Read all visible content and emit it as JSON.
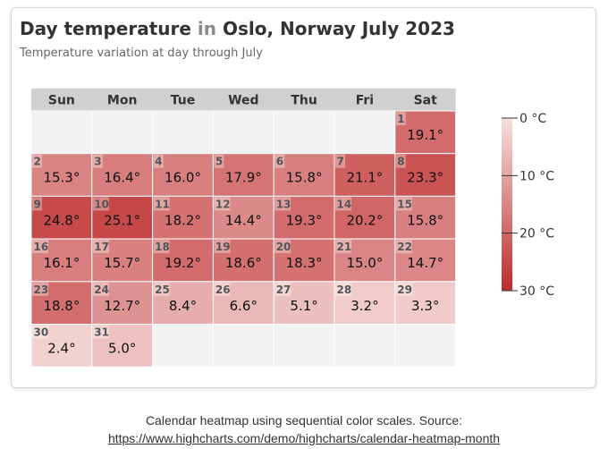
{
  "chart_data": {
    "type": "heatmap",
    "title_prefix": "Day temperature",
    "title_connector": "in",
    "title_suffix": "Oslo, Norway July 2023",
    "subtitle": "Temperature variation at day through July",
    "weekdays": [
      "Sun",
      "Mon",
      "Tue",
      "Wed",
      "Thu",
      "Fri",
      "Sat"
    ],
    "month_start_weekday": 6,
    "unit": "°",
    "days": [
      {
        "day": 1,
        "temp": 19.1,
        "label": "19.1°"
      },
      {
        "day": 2,
        "temp": 15.3,
        "label": "15.3°"
      },
      {
        "day": 3,
        "temp": 16.4,
        "label": "16.4°"
      },
      {
        "day": 4,
        "temp": 16.0,
        "label": "16.0°"
      },
      {
        "day": 5,
        "temp": 17.9,
        "label": "17.9°"
      },
      {
        "day": 6,
        "temp": 15.8,
        "label": "15.8°"
      },
      {
        "day": 7,
        "temp": 21.1,
        "label": "21.1°"
      },
      {
        "day": 8,
        "temp": 23.3,
        "label": "23.3°"
      },
      {
        "day": 9,
        "temp": 24.8,
        "label": "24.8°"
      },
      {
        "day": 10,
        "temp": 25.1,
        "label": "25.1°"
      },
      {
        "day": 11,
        "temp": 18.2,
        "label": "18.2°"
      },
      {
        "day": 12,
        "temp": 14.4,
        "label": "14.4°"
      },
      {
        "day": 13,
        "temp": 19.3,
        "label": "19.3°"
      },
      {
        "day": 14,
        "temp": 20.2,
        "label": "20.2°"
      },
      {
        "day": 15,
        "temp": 15.8,
        "label": "15.8°"
      },
      {
        "day": 16,
        "temp": 16.1,
        "label": "16.1°"
      },
      {
        "day": 17,
        "temp": 15.7,
        "label": "15.7°"
      },
      {
        "day": 18,
        "temp": 19.2,
        "label": "19.2°"
      },
      {
        "day": 19,
        "temp": 18.6,
        "label": "18.6°"
      },
      {
        "day": 20,
        "temp": 18.3,
        "label": "18.3°"
      },
      {
        "day": 21,
        "temp": 15.0,
        "label": "15.0°"
      },
      {
        "day": 22,
        "temp": 14.7,
        "label": "14.7°"
      },
      {
        "day": 23,
        "temp": 18.8,
        "label": "18.8°"
      },
      {
        "day": 24,
        "temp": 12.7,
        "label": "12.7°"
      },
      {
        "day": 25,
        "temp": 8.4,
        "label": "8.4°"
      },
      {
        "day": 26,
        "temp": 6.6,
        "label": "6.6°"
      },
      {
        "day": 27,
        "temp": 5.1,
        "label": "5.1°"
      },
      {
        "day": 28,
        "temp": 3.2,
        "label": "3.2°"
      },
      {
        "day": 29,
        "temp": 3.3,
        "label": "3.3°"
      },
      {
        "day": 30,
        "temp": 2.4,
        "label": "2.4°"
      },
      {
        "day": 31,
        "temp": 5.0,
        "label": "5.0°"
      }
    ],
    "color_axis": {
      "min": 0,
      "max": 30,
      "min_color": "#F7DFDF",
      "max_color": "#BD2B2B",
      "ticks": [
        {
          "value": 0,
          "label": "0 °C"
        },
        {
          "value": 10,
          "label": "10 °C"
        },
        {
          "value": 20,
          "label": "20 °C"
        },
        {
          "value": 30,
          "label": "30 °C"
        }
      ]
    },
    "colors": {
      "header_bg": "#D0D0D0",
      "empty_cell": "#F2F2F2",
      "cell_border": "#FFFFFF",
      "day_number_bg": "rgba(255,255,255,0.35)"
    }
  },
  "caption": {
    "line1": "Calendar heatmap using sequential color scales. Source:",
    "link": "https://www.highcharts.com/demo/highcharts/calendar-heatmap-month"
  }
}
